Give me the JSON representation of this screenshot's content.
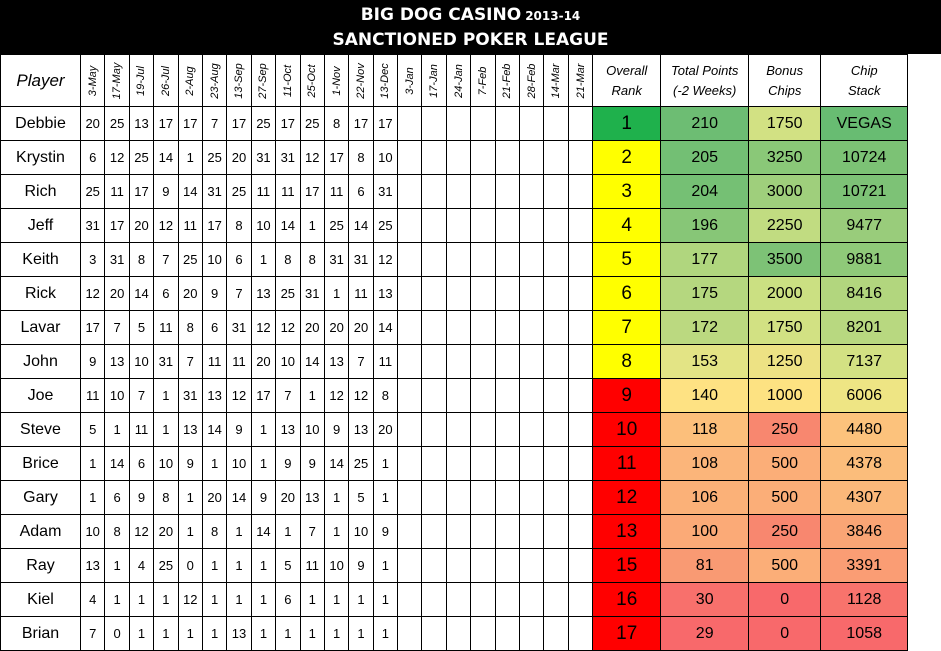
{
  "title": {
    "line1": "BIG DOG CASINO",
    "year": "2013-14",
    "line2": "SANCTIONED POKER LEAGUE"
  },
  "columns": {
    "player": "Player",
    "dates": [
      "3-May",
      "17-May",
      "19-Jul",
      "26-Jul",
      "2-Aug",
      "23-Aug",
      "13-Sep",
      "27-Sep",
      "11-Oct",
      "25-Oct",
      "1-Nov",
      "22-Nov",
      "13-Dec",
      "3-Jan",
      "17-Jan",
      "24-Jan",
      "7-Feb",
      "21-Feb",
      "28-Feb",
      "14-Mar",
      "21-Mar"
    ],
    "rank_line1": "Overall",
    "rank_line2": "Rank",
    "points_line1": "Total Points",
    "points_line2": "(-2 Weeks)",
    "bonus_line1": "Bonus",
    "bonus_line2": "Chips",
    "chips_line1": "Chip",
    "chips_line2": "Stack"
  },
  "rows": [
    {
      "player": "Debbie",
      "scores": [
        "20",
        "25",
        "13",
        "17",
        "17",
        "7",
        "17",
        "25",
        "17",
        "25",
        "8",
        "17",
        "17"
      ],
      "rank": "1",
      "points": "210",
      "bonus": "1750",
      "chips": "VEGAS",
      "rank_color": "#1fb14c",
      "points_color": "#6dbd73",
      "bonus_color": "#d2e183",
      "chips_color": "#68bc72"
    },
    {
      "player": "Krystin",
      "scores": [
        "6",
        "12",
        "25",
        "14",
        "1",
        "25",
        "20",
        "31",
        "31",
        "12",
        "17",
        "8",
        "10"
      ],
      "rank": "2",
      "points": "205",
      "bonus": "3250",
      "chips": "10724",
      "rank_color": "#ffff00",
      "points_color": "#73bf74",
      "bonus_color": "#8ac878",
      "chips_color": "#7cc275"
    },
    {
      "player": "Rich",
      "scores": [
        "25",
        "11",
        "17",
        "9",
        "14",
        "31",
        "25",
        "11",
        "11",
        "17",
        "11",
        "6",
        "31"
      ],
      "rank": "3",
      "points": "204",
      "bonus": "3000",
      "chips": "10721",
      "rank_color": "#ffff00",
      "points_color": "#75c074",
      "bonus_color": "#9fcf7c",
      "chips_color": "#7dc276"
    },
    {
      "player": "Jeff",
      "scores": [
        "31",
        "17",
        "20",
        "12",
        "11",
        "17",
        "8",
        "10",
        "14",
        "1",
        "25",
        "14",
        "25"
      ],
      "rank": "4",
      "points": "196",
      "bonus": "2250",
      "chips": "9477",
      "rank_color": "#ffff00",
      "points_color": "#87c677",
      "bonus_color": "#c1dc81",
      "chips_color": "#99cc7b"
    },
    {
      "player": "Keith",
      "scores": [
        "3",
        "31",
        "8",
        "7",
        "25",
        "10",
        "6",
        "1",
        "8",
        "8",
        "31",
        "31",
        "12"
      ],
      "rank": "5",
      "points": "177",
      "bonus": "3500",
      "chips": "9881",
      "rank_color": "#ffff00",
      "points_color": "#b0d67e",
      "bonus_color": "#7dc276",
      "chips_color": "#8fc979"
    },
    {
      "player": "Rick",
      "scores": [
        "12",
        "20",
        "14",
        "6",
        "20",
        "9",
        "7",
        "13",
        "25",
        "31",
        "1",
        "11",
        "13"
      ],
      "rank": "6",
      "points": "175",
      "bonus": "2000",
      "chips": "8416",
      "rank_color": "#ffff00",
      "points_color": "#b5d77f",
      "bonus_color": "#cbe082",
      "chips_color": "#b2d67e"
    },
    {
      "player": "Lavar",
      "scores": [
        "17",
        "7",
        "5",
        "11",
        "8",
        "6",
        "31",
        "12",
        "12",
        "20",
        "20",
        "20",
        "14"
      ],
      "rank": "7",
      "points": "172",
      "bonus": "1750",
      "chips": "8201",
      "rank_color": "#ffff00",
      "points_color": "#bbd980",
      "bonus_color": "#d2e183",
      "chips_color": "#b8d880"
    },
    {
      "player": "John",
      "scores": [
        "9",
        "13",
        "10",
        "31",
        "7",
        "11",
        "11",
        "20",
        "10",
        "14",
        "13",
        "7",
        "11"
      ],
      "rank": "8",
      "points": "153",
      "bonus": "1250",
      "chips": "7137",
      "rank_color": "#ffff00",
      "points_color": "#e3e485",
      "bonus_color": "#ede284",
      "chips_color": "#d3e183"
    },
    {
      "player": "Joe",
      "scores": [
        "11",
        "10",
        "7",
        "1",
        "31",
        "13",
        "12",
        "17",
        "7",
        "1",
        "12",
        "12",
        "8"
      ],
      "rank": "9",
      "points": "140",
      "bonus": "1000",
      "chips": "6006",
      "rank_color": "#ff0000",
      "points_color": "#fee283",
      "bonus_color": "#fde282",
      "chips_color": "#eee584"
    },
    {
      "player": "Steve",
      "scores": [
        "5",
        "1",
        "11",
        "1",
        "13",
        "14",
        "9",
        "1",
        "13",
        "10",
        "9",
        "13",
        "20"
      ],
      "rank": "10",
      "points": "118",
      "bonus": "250",
      "chips": "4480",
      "rank_color": "#ff0000",
      "points_color": "#fcbf7b",
      "bonus_color": "#f8876f",
      "chips_color": "#fcc27c"
    },
    {
      "player": "Brice",
      "scores": [
        "1",
        "14",
        "6",
        "10",
        "9",
        "1",
        "10",
        "1",
        "9",
        "9",
        "14",
        "25",
        "1"
      ],
      "rank": "11",
      "points": "108",
      "bonus": "500",
      "chips": "4378",
      "rank_color": "#ff0000",
      "points_color": "#fbb57a",
      "bonus_color": "#fbae78",
      "chips_color": "#fbbd7b"
    },
    {
      "player": "Gary",
      "scores": [
        "1",
        "6",
        "9",
        "8",
        "1",
        "20",
        "14",
        "9",
        "20",
        "13",
        "1",
        "5",
        "1"
      ],
      "rank": "12",
      "points": "106",
      "bonus": "500",
      "chips": "4307",
      "rank_color": "#ff0000",
      "points_color": "#fbb178",
      "bonus_color": "#fbae78",
      "chips_color": "#fbb87a"
    },
    {
      "player": "Adam",
      "scores": [
        "10",
        "8",
        "12",
        "20",
        "1",
        "8",
        "1",
        "14",
        "1",
        "7",
        "1",
        "10",
        "9"
      ],
      "rank": "13",
      "points": "100",
      "bonus": "250",
      "chips": "3846",
      "rank_color": "#ff0000",
      "points_color": "#fbaa77",
      "bonus_color": "#f8876f",
      "chips_color": "#faa575"
    },
    {
      "player": "Ray",
      "scores": [
        "13",
        "1",
        "4",
        "25",
        "0",
        "1",
        "1",
        "1",
        "5",
        "11",
        "10",
        "9",
        "1"
      ],
      "rank": "15",
      "points": "81",
      "bonus": "500",
      "chips": "3391",
      "rank_color": "#ff0000",
      "points_color": "#f99a73",
      "bonus_color": "#fbae78",
      "chips_color": "#fa9d74"
    },
    {
      "player": "Kiel",
      "scores": [
        "4",
        "1",
        "1",
        "1",
        "12",
        "1",
        "1",
        "1",
        "6",
        "1",
        "1",
        "1",
        "1"
      ],
      "rank": "16",
      "points": "30",
      "bonus": "0",
      "chips": "1128",
      "rank_color": "#ff0000",
      "points_color": "#f8706c",
      "bonus_color": "#f8696b",
      "chips_color": "#f8736c"
    },
    {
      "player": "Brian",
      "scores": [
        "7",
        "0",
        "1",
        "1",
        "1",
        "1",
        "13",
        "1",
        "1",
        "1",
        "1",
        "1",
        "1"
      ],
      "rank": "17",
      "points": "29",
      "bonus": "0",
      "chips": "1058",
      "rank_color": "#ff0000",
      "points_color": "#f8696b",
      "bonus_color": "#f8696b",
      "chips_color": "#f8696b"
    }
  ]
}
